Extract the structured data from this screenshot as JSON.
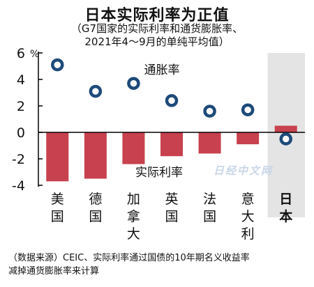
{
  "title": "日本实际利率为正值",
  "subtitle_line1": "（G7国家的实际利率和通货膨胀率、",
  "subtitle_line2": "2021年4～9月的单纯平均值）",
  "source_line1": "（数据来源）CEIC、实际利率通过国债的10年期名义收益率",
  "source_line2": "减掉通货膨胀率来计算",
  "watermark": "日经中文网",
  "colors": {
    "bar": "#c8414e",
    "marker_stroke": "#1d4a7a",
    "marker_fill": "#ffffff",
    "highlight_bg": "#e4e4e4",
    "axis": "#000000"
  },
  "chart_data": {
    "type": "bar",
    "categories": [
      "美国",
      "德国",
      "加拿大",
      "英国",
      "法国",
      "意大利",
      "日本"
    ],
    "series": [
      {
        "name": "实际利率",
        "type": "bar",
        "values": [
          -3.7,
          -3.5,
          -2.4,
          -1.8,
          -1.6,
          -0.9,
          0.5
        ]
      },
      {
        "name": "通胀率",
        "type": "scatter",
        "values": [
          5.1,
          3.1,
          3.7,
          2.4,
          1.6,
          1.7,
          -0.5
        ]
      }
    ],
    "series_labels": {
      "inflation": "通胀率",
      "real_rate": "实际利率"
    },
    "y_unit": "%",
    "ylim": [
      -4,
      6
    ],
    "yticks": [
      "6",
      "4",
      "2",
      "0",
      "-2",
      "-4"
    ],
    "highlight_category": "日本",
    "legend": "inline labels"
  }
}
